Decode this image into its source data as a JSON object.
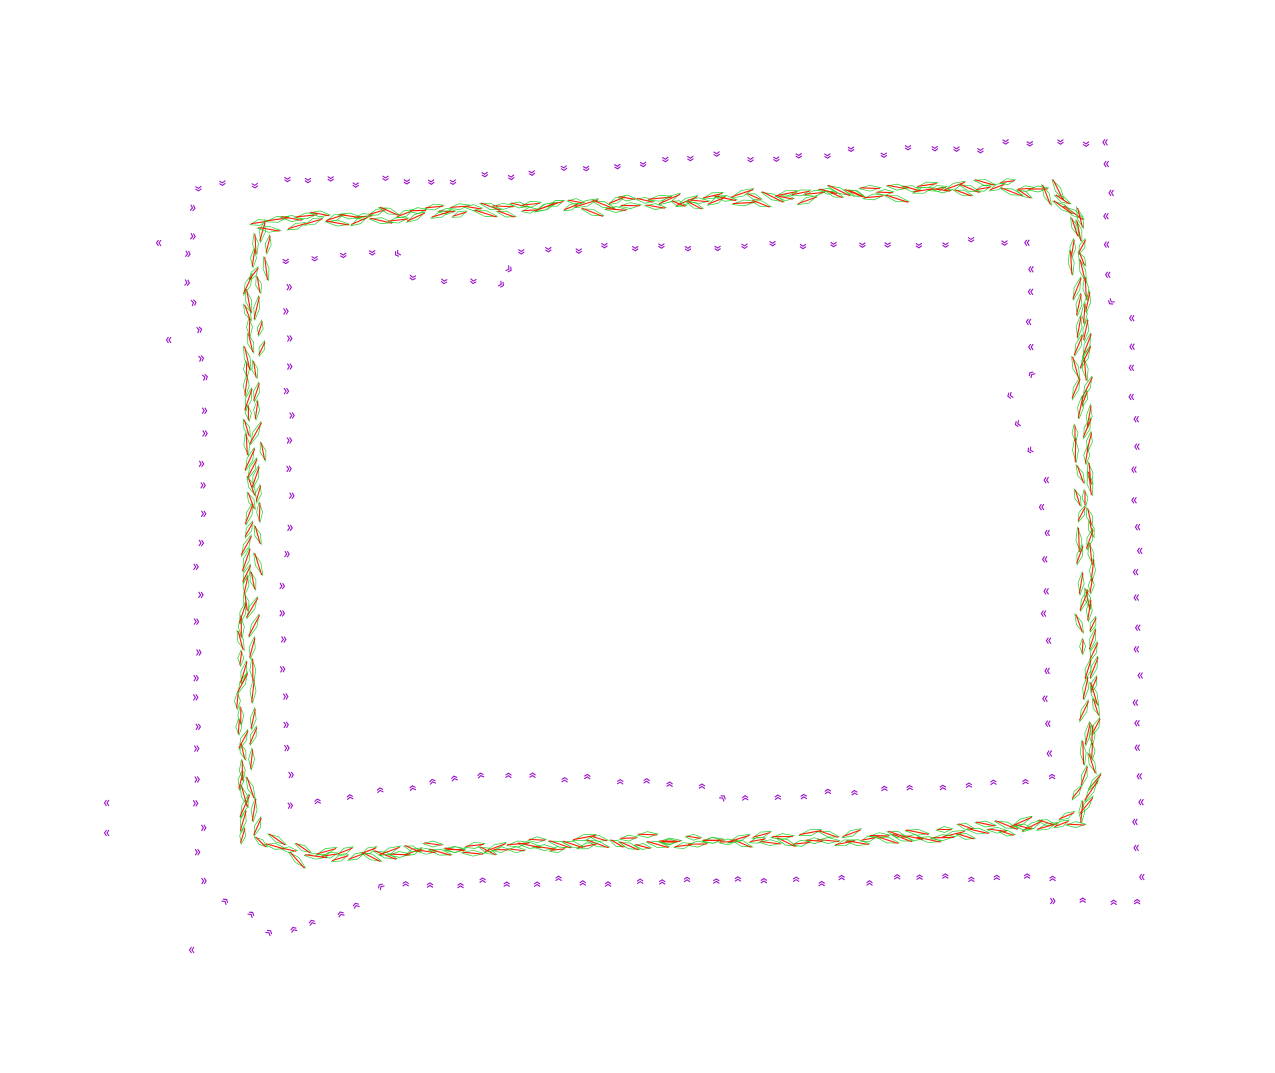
{
  "colors": {
    "background": "#ffffff",
    "outer_marks": "#9b10c9",
    "lane_marks": "#ff1a00",
    "heading_marks": "#1fd12a"
  },
  "legend": null
}
